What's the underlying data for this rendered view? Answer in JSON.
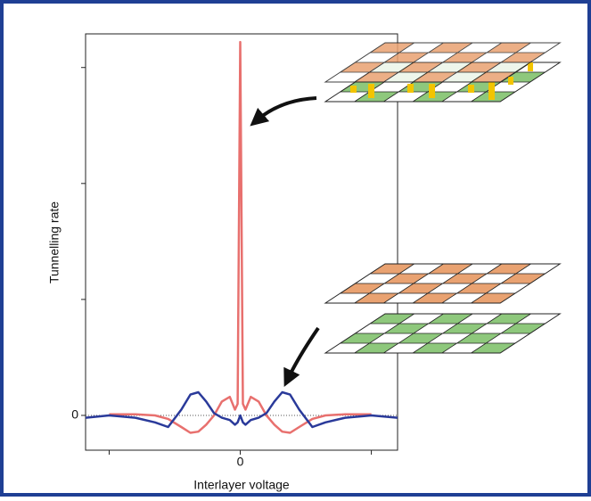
{
  "chart_data": {
    "type": "line",
    "x_label": "Interlayer voltage",
    "y_label": "Tunnelling rate",
    "x": [
      -1.18,
      -1.0,
      -0.8,
      -0.65,
      -0.55,
      -0.45,
      -0.38,
      -0.32,
      -0.26,
      -0.2,
      -0.14,
      -0.08,
      -0.04,
      -0.02,
      0,
      0.02,
      0.04,
      0.08,
      0.14,
      0.2,
      0.26,
      0.32,
      0.38,
      0.45,
      0.55,
      0.65,
      0.8,
      1.0,
      1.2
    ],
    "series": [
      {
        "color": "#e8706e",
        "values": [
          null,
          0.01,
          0.01,
          0.0,
          -0.03,
          -0.1,
          -0.15,
          -0.14,
          -0.08,
          0.0,
          0.12,
          0.16,
          0.05,
          0.1,
          3.22,
          0.1,
          0.05,
          0.16,
          0.12,
          0.0,
          -0.08,
          -0.14,
          -0.15,
          -0.1,
          -0.03,
          0.0,
          0.01,
          0.01,
          null
        ]
      },
      {
        "color": "#2a3a9a",
        "values": [
          -0.02,
          0,
          -0.02,
          -0.06,
          -0.1,
          0.05,
          0.18,
          0.2,
          0.12,
          0.02,
          -0.02,
          -0.04,
          -0.08,
          -0.06,
          0,
          -0.06,
          -0.08,
          -0.04,
          -0.02,
          0.02,
          0.12,
          0.2,
          0.18,
          0.05,
          -0.1,
          -0.06,
          -0.02,
          0,
          -0.02
        ]
      }
    ],
    "xlim": [
      -1.18,
      1.2
    ],
    "ylim": [
      -0.3,
      3.29
    ],
    "xticks": [
      0
    ],
    "xticks_unlabeled": [
      -1,
      1
    ],
    "yticks": [
      0
    ],
    "yticks_unlabeled": [
      1,
      2,
      3
    ],
    "zero_line": true
  }
}
